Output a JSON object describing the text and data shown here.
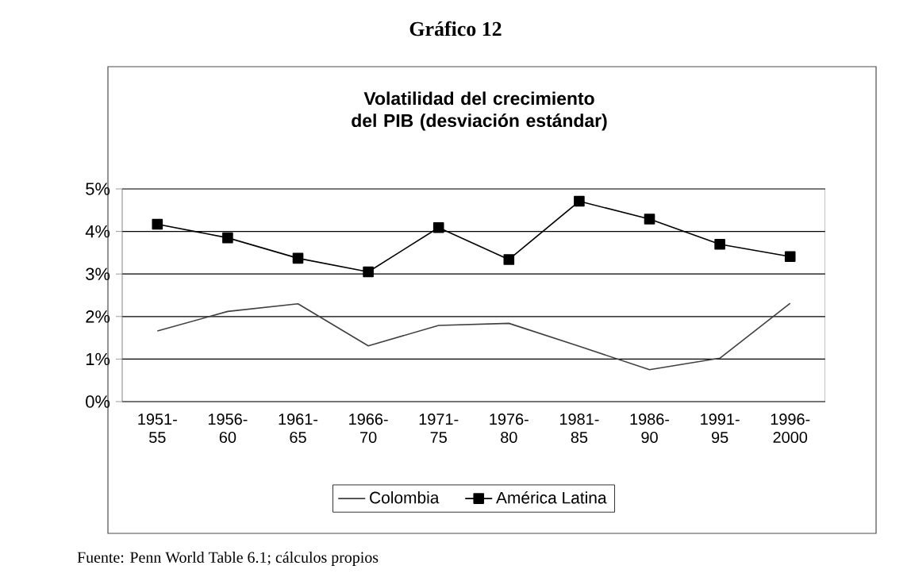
{
  "chart_data": {
    "type": "line",
    "title": "Gráfico 12",
    "subtitle": "Volatilidad del crecimiento del PIB (desviación estándar)",
    "categories": [
      "1951- 55",
      "1956- 60",
      "1961- 65",
      "1966- 70",
      "1971- 75",
      "1976- 80",
      "1981- 85",
      "1986- 90",
      "1991- 95",
      "1996- 2000"
    ],
    "series": [
      {
        "name": "Colombia",
        "color": "#404040",
        "marker": "none",
        "values": [
          1.66,
          2.12,
          2.3,
          1.31,
          1.79,
          1.84,
          1.3,
          0.75,
          1.02,
          2.31
        ]
      },
      {
        "name": "América Latina",
        "color": "#000000",
        "marker": "square",
        "values": [
          4.17,
          3.85,
          3.37,
          3.05,
          4.09,
          3.34,
          4.71,
          4.29,
          3.7,
          3.41
        ]
      }
    ],
    "ylim": [
      0,
      5
    ],
    "yticks": [
      {
        "value": 0,
        "label": "0%"
      },
      {
        "value": 1,
        "label": "1%"
      },
      {
        "value": 2,
        "label": "2%"
      },
      {
        "value": 3,
        "label": "3%"
      },
      {
        "value": 4,
        "label": "4%"
      },
      {
        "value": 5,
        "label": "5%"
      }
    ],
    "grid": "y",
    "legend": "bottom",
    "line_style": "solid",
    "annotations": [
      "Fuente: Penn World Table 6.1; cálculos propios"
    ]
  }
}
